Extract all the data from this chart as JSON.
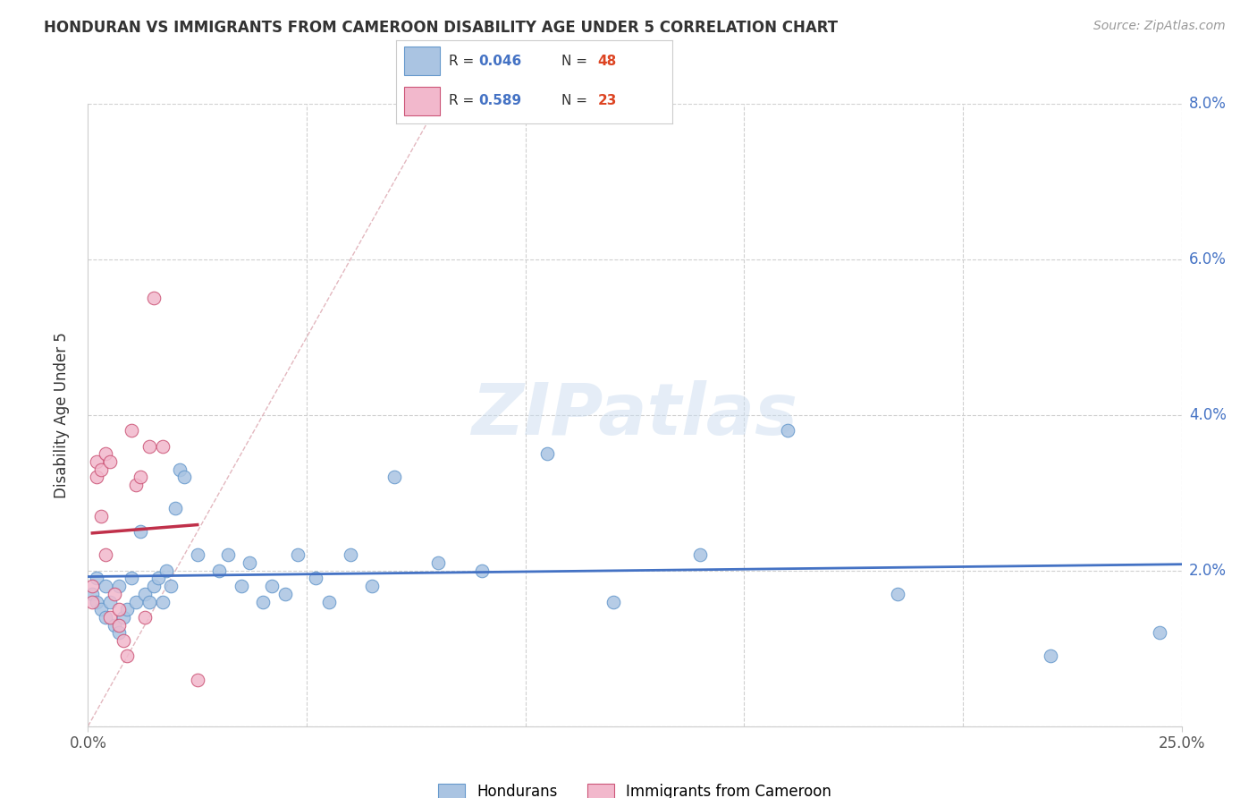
{
  "title": "HONDURAN VS IMMIGRANTS FROM CAMEROON DISABILITY AGE UNDER 5 CORRELATION CHART",
  "source": "Source: ZipAtlas.com",
  "ylabel": "Disability Age Under 5",
  "watermark": "ZIPatlas",
  "legend_hondurans": "Hondurans",
  "legend_cameroon": "Immigrants from Cameroon",
  "R_hondurans": 0.046,
  "N_hondurans": 48,
  "R_cameroon": 0.589,
  "N_cameroon": 23,
  "xlim": [
    0.0,
    0.25
  ],
  "ylim": [
    0.0,
    0.08
  ],
  "color_hondurans": "#aac4e2",
  "color_cameroon": "#f2b8cc",
  "color_edge_hondurans": "#6699cc",
  "color_edge_cameroon": "#cc5577",
  "color_line_hondurans": "#4472c4",
  "color_line_cameroon": "#c0304a",
  "color_diagonal": "#ddaaaa",
  "color_grid": "#d0d0d0",
  "color_title": "#333333",
  "color_source": "#999999",
  "color_R_value": "#4472c4",
  "color_N_value": "#dd4422",
  "hondurans_x": [
    0.001,
    0.002,
    0.002,
    0.003,
    0.004,
    0.004,
    0.005,
    0.006,
    0.007,
    0.007,
    0.008,
    0.009,
    0.01,
    0.011,
    0.012,
    0.013,
    0.014,
    0.015,
    0.016,
    0.017,
    0.018,
    0.019,
    0.02,
    0.021,
    0.022,
    0.025,
    0.03,
    0.032,
    0.035,
    0.037,
    0.04,
    0.042,
    0.045,
    0.048,
    0.052,
    0.055,
    0.06,
    0.065,
    0.07,
    0.08,
    0.09,
    0.105,
    0.12,
    0.14,
    0.16,
    0.185,
    0.22,
    0.245
  ],
  "hondurans_y": [
    0.017,
    0.019,
    0.016,
    0.015,
    0.018,
    0.014,
    0.016,
    0.013,
    0.018,
    0.012,
    0.014,
    0.015,
    0.019,
    0.016,
    0.025,
    0.017,
    0.016,
    0.018,
    0.019,
    0.016,
    0.02,
    0.018,
    0.028,
    0.033,
    0.032,
    0.022,
    0.02,
    0.022,
    0.018,
    0.021,
    0.016,
    0.018,
    0.017,
    0.022,
    0.019,
    0.016,
    0.022,
    0.018,
    0.032,
    0.021,
    0.02,
    0.035,
    0.016,
    0.022,
    0.038,
    0.017,
    0.009,
    0.012
  ],
  "cameroon_x": [
    0.001,
    0.001,
    0.002,
    0.002,
    0.003,
    0.003,
    0.004,
    0.004,
    0.005,
    0.005,
    0.006,
    0.007,
    0.007,
    0.008,
    0.009,
    0.01,
    0.011,
    0.012,
    0.013,
    0.014,
    0.015,
    0.017,
    0.025
  ],
  "cameroon_y": [
    0.018,
    0.016,
    0.032,
    0.034,
    0.033,
    0.027,
    0.035,
    0.022,
    0.034,
    0.014,
    0.017,
    0.015,
    0.013,
    0.011,
    0.009,
    0.038,
    0.031,
    0.032,
    0.014,
    0.036,
    0.055,
    0.036,
    0.006
  ],
  "yticks": [
    0.0,
    0.02,
    0.04,
    0.06,
    0.08
  ],
  "ytick_labels": [
    "",
    "2.0%",
    "4.0%",
    "6.0%",
    "8.0%"
  ],
  "xtick_labels": [
    "0.0%",
    "25.0%"
  ],
  "xtick_positions": [
    0.0,
    0.25
  ]
}
